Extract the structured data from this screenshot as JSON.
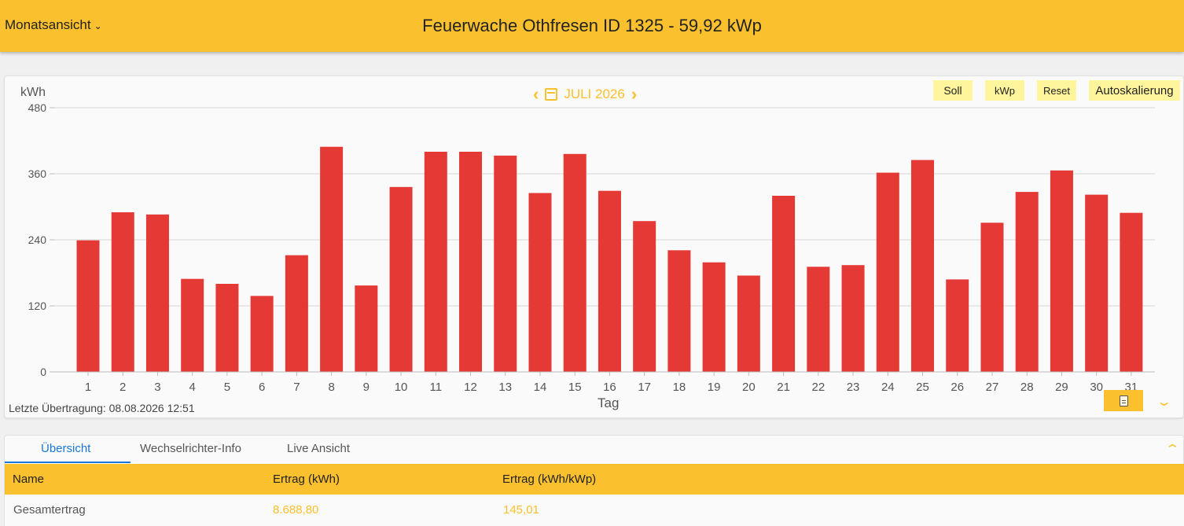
{
  "header": {
    "view_selector": "Monatsansicht",
    "title": "Feuerwache Othfresen ID 1325 - 59,92 kWp"
  },
  "chart_panel": {
    "unit": "kWh",
    "period": "JULI 2026",
    "buttons": {
      "soll": "Soll",
      "kwp": "kWp",
      "reset": "Reset",
      "autoscale": "Autoskalierung"
    },
    "last_transfer": "Letzte Übertragung: 08.08.2026 12:51"
  },
  "chart_data": {
    "type": "bar",
    "ylabel": "kWh",
    "xlabel": "Tag",
    "ylim": [
      0,
      480
    ],
    "yticks": [
      0,
      120,
      240,
      360,
      480
    ],
    "grid": true,
    "bar_color": "#e53935",
    "categories": [
      "1",
      "2",
      "3",
      "4",
      "5",
      "6",
      "7",
      "8",
      "9",
      "10",
      "11",
      "12",
      "13",
      "14",
      "15",
      "16",
      "17",
      "18",
      "19",
      "20",
      "21",
      "22",
      "23",
      "24",
      "25",
      "26",
      "27",
      "28",
      "29",
      "30",
      "31"
    ],
    "values": [
      239,
      290,
      286,
      169,
      160,
      138,
      212,
      409,
      157,
      336,
      400,
      400,
      393,
      325,
      396,
      329,
      274,
      221,
      199,
      175,
      320,
      191,
      194,
      362,
      385,
      168,
      271,
      327,
      366,
      322,
      289
    ]
  },
  "summary": {
    "tabs": [
      "Übersicht",
      "Wechselrichter-Info",
      "Live Ansicht"
    ],
    "columns": [
      "Name",
      "Ertrag (kWh)",
      "Ertrag (kWh/kWp)"
    ],
    "row": {
      "name": "Gesamtertrag",
      "ertrag": "8.688,80",
      "ertrag_kwp": "145,01"
    }
  },
  "colors": {
    "accent": "#fbc02d",
    "bar": "#e53935",
    "tab_active": "#1976d2"
  }
}
